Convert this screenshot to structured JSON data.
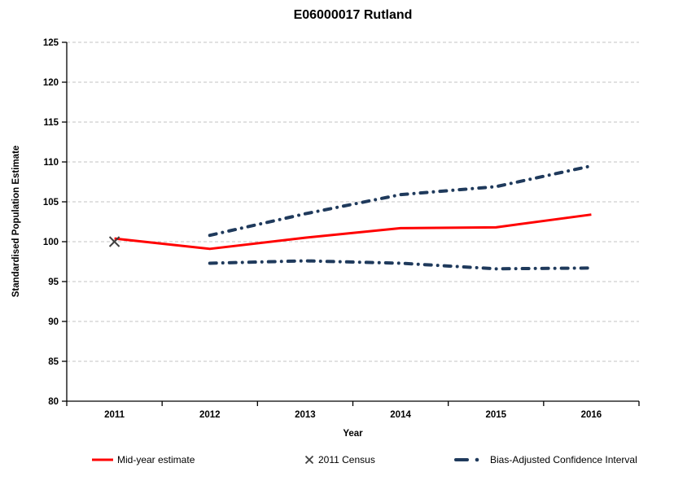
{
  "chart_data": {
    "type": "line",
    "title": "E06000017 Rutland",
    "xlabel": "Year",
    "ylabel": "Standardised Population Estimate",
    "x_categories": [
      "2011",
      "2012",
      "2013",
      "2014",
      "2015",
      "2016"
    ],
    "ylim": [
      80,
      125
    ],
    "ytick_step": 5,
    "grid": "horizontal dashed gridlines at every 5 units",
    "legend_position": "bottom",
    "series": [
      {
        "name": "Mid-year estimate",
        "type": "line",
        "style": "solid",
        "color": "#ff0000",
        "x": [
          "2011",
          "2012",
          "2013",
          "2014",
          "2015",
          "2016"
        ],
        "values": [
          100.4,
          99.1,
          100.5,
          101.7,
          101.8,
          103.4
        ]
      },
      {
        "name": "2011 Census",
        "type": "scatter",
        "marker": "x",
        "color": "#404040",
        "x": [
          "2011"
        ],
        "values": [
          100.0
        ]
      },
      {
        "name": "Bias-Adjusted Confidence Interval",
        "type": "line",
        "style": "dash-dot",
        "color": "#1f3a5c",
        "bounds": {
          "upper": {
            "x": [
              "2012",
              "2013",
              "2014",
              "2015",
              "2016"
            ],
            "values": [
              100.8,
              103.5,
              105.9,
              106.9,
              109.5
            ]
          },
          "lower": {
            "x": [
              "2012",
              "2013",
              "2014",
              "2015",
              "2016"
            ],
            "values": [
              97.3,
              97.6,
              97.3,
              96.6,
              96.7
            ]
          }
        }
      }
    ],
    "colors": {
      "gridline": "#c3c3c3",
      "axis": "#000000",
      "text": "#000000",
      "background": "#ffffff"
    }
  }
}
